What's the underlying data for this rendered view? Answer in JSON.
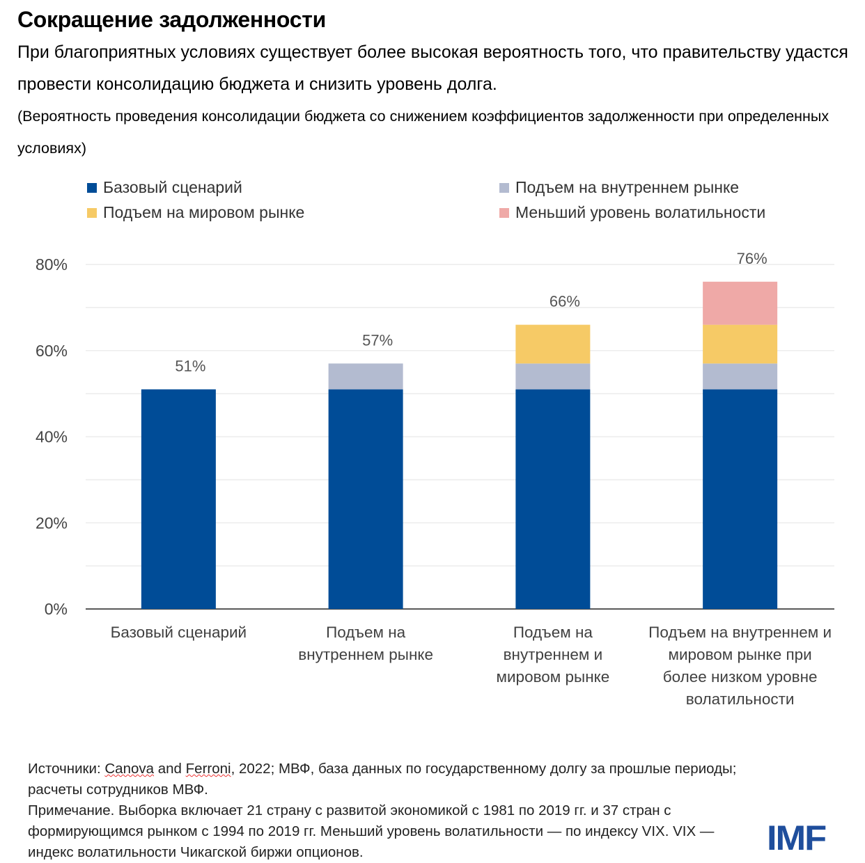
{
  "title": "Сокращение задолженности",
  "subtitle": "При благоприятных условиях существует более высокая вероятность того, что правительству удастся провести консолидацию бюджета и снизить уровень долга.",
  "note": "(Вероятность проведения консолидации бюджета со снижением коэффициентов задолженности при определенных условиях)",
  "chart_data": {
    "type": "bar",
    "stacked": true,
    "categories": [
      "Базовый сценарий",
      "Подъем на внутреннем рынке",
      "Подъем на внутреннем и мировом рынке",
      "Подъем на внутреннем и мировом рынке  при более низком уровне волатильности"
    ],
    "series": [
      {
        "name": "Базовый сценарий",
        "color": "#004C97",
        "values": [
          51,
          51,
          51,
          51
        ]
      },
      {
        "name": "Подъем на внутреннем рынке",
        "color": "#B3BBD0",
        "values": [
          0,
          6,
          6,
          6
        ]
      },
      {
        "name": "Подъем на мировом рынке",
        "color": "#F6CA66",
        "values": [
          0,
          0,
          9,
          9
        ]
      },
      {
        "name": "Меньший уровень волатильности",
        "color": "#EFA9A7",
        "values": [
          0,
          0,
          0,
          10
        ]
      }
    ],
    "data_labels": [
      "51%",
      "57%",
      "66%",
      "76%"
    ],
    "yticks": [
      "0%",
      "20%",
      "40%",
      "60%",
      "80%"
    ],
    "ylim": [
      0,
      80
    ],
    "grid": true,
    "legend_position": "top"
  },
  "footer": {
    "src_prefix": "Источники: ",
    "src_a": "Canova",
    "src_and": " and ",
    "src_b": "Ferroni",
    "src_rest": ", 2022; МВФ, база данных по государственному долгу за прошлые периоды; расчеты сотрудников МВФ.",
    "note": "Примечание. Выборка включает 21 страну с развитой экономикой с 1981 по 2019 гг. и 37 стран с формирующимся рынком с 1994 по 2019 гг. Меньший уровень волатильности — по индексу VIX. VIX — индекс волатильности Чикагской биржи опционов."
  },
  "logo": "IMF"
}
